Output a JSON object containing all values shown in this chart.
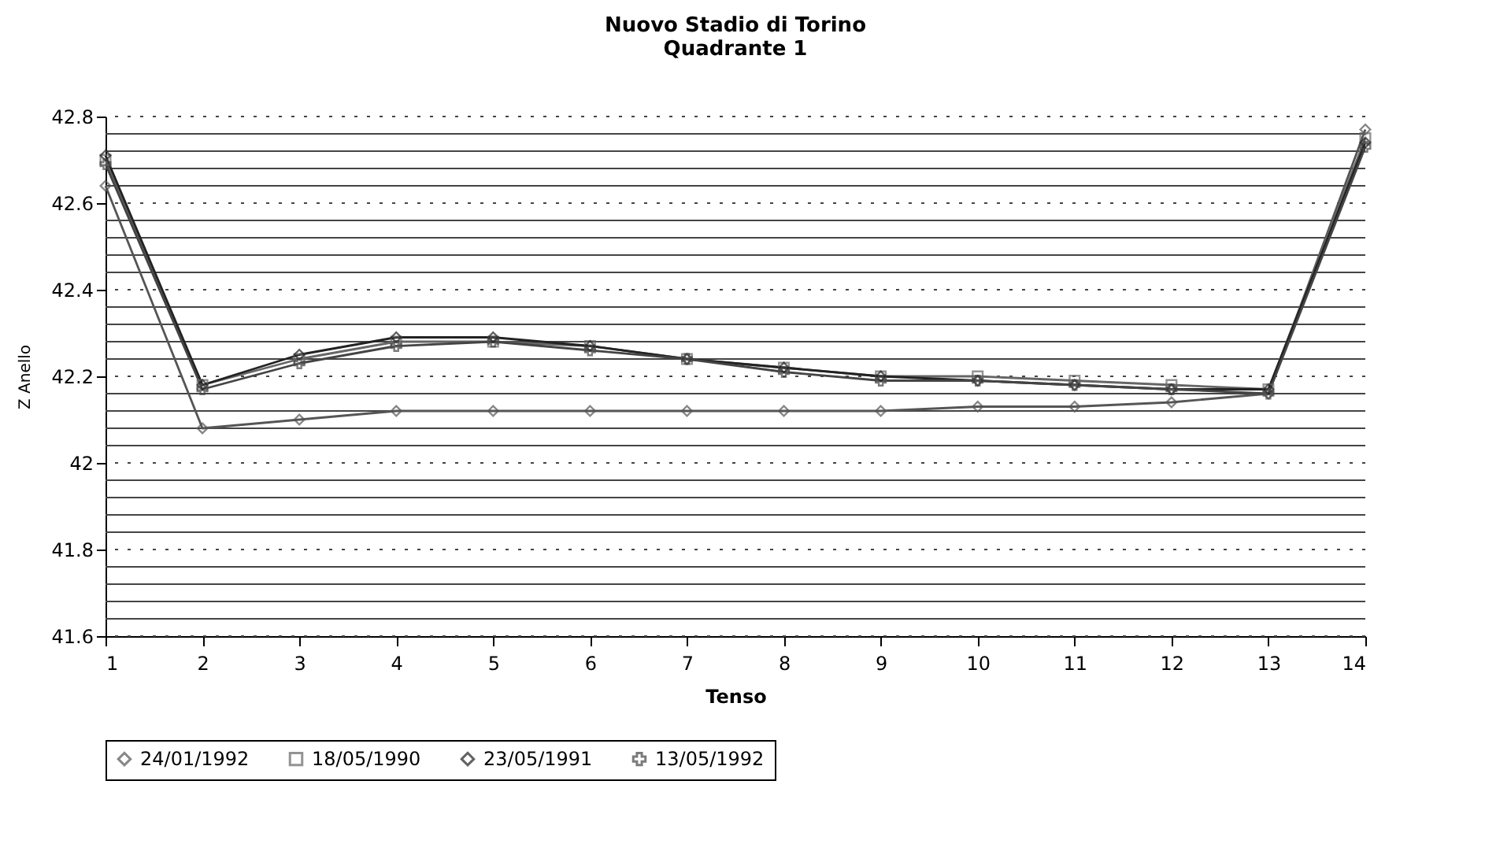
{
  "chart_data": {
    "type": "line",
    "title": "Nuovo Stadio di Torino",
    "subtitle": "Quadrante 1",
    "xlabel": "Tenso",
    "ylabel": "Z Anello",
    "x": [
      1,
      2,
      3,
      4,
      5,
      6,
      7,
      8,
      9,
      10,
      11,
      12,
      13,
      14
    ],
    "xlim": [
      1,
      14
    ],
    "xticks": [
      1,
      2,
      3,
      4,
      5,
      6,
      7,
      8,
      9,
      10,
      11,
      12,
      13,
      14
    ],
    "ylim": [
      41.6,
      42.8
    ],
    "yticks": [
      41.6,
      {
        "value": 41.64,
        "label": null
      },
      {
        "value": 41.68,
        "label": null
      },
      {
        "value": 41.72,
        "label": null
      },
      {
        "value": 41.76,
        "label": null
      },
      41.8,
      {
        "value": 41.84,
        "label": null
      },
      {
        "value": 41.88,
        "label": null
      },
      {
        "value": 41.92,
        "label": null
      },
      {
        "value": 41.96,
        "label": null
      },
      42,
      {
        "value": 42.04,
        "label": null
      },
      {
        "value": 42.08,
        "label": null
      },
      {
        "value": 42.12,
        "label": null
      },
      {
        "value": 42.16,
        "label": null
      },
      42.2,
      {
        "value": 42.24,
        "label": null
      },
      {
        "value": 42.28,
        "label": null
      },
      {
        "value": 42.32,
        "label": null
      },
      {
        "value": 42.36,
        "label": null
      },
      42.4,
      {
        "value": 42.44,
        "label": null
      },
      {
        "value": 42.48,
        "label": null
      },
      {
        "value": 42.52,
        "label": null
      },
      {
        "value": 42.56,
        "label": null
      },
      42.6,
      {
        "value": 42.64,
        "label": null
      },
      {
        "value": 42.68,
        "label": null
      },
      {
        "value": 42.72,
        "label": null
      },
      {
        "value": 42.76,
        "label": null
      },
      42.8
    ],
    "grid": "y",
    "legend": "bottom",
    "series": [
      {
        "name": "24/01/1992",
        "color": "#555555",
        "marker": "diamond",
        "values": [
          42.64,
          42.08,
          42.1,
          42.12,
          42.12,
          42.12,
          42.12,
          42.12,
          42.12,
          42.13,
          42.13,
          42.14,
          42.16,
          42.77
        ]
      },
      {
        "name": "18/05/1990",
        "color": "#666666",
        "marker": "square",
        "values": [
          42.7,
          42.18,
          42.24,
          42.28,
          42.28,
          42.27,
          42.24,
          42.22,
          42.2,
          42.2,
          42.19,
          42.18,
          42.17,
          42.75
        ]
      },
      {
        "name": "23/05/1991",
        "color": "#222222",
        "marker": "diamond",
        "values": [
          42.71,
          42.18,
          42.25,
          42.29,
          42.29,
          42.27,
          42.24,
          42.22,
          42.2,
          42.19,
          42.18,
          42.17,
          42.17,
          42.74
        ]
      },
      {
        "name": "13/05/1992",
        "color": "#444444",
        "marker": "cross",
        "values": [
          42.69,
          42.17,
          42.23,
          42.27,
          42.28,
          42.26,
          42.24,
          42.21,
          42.19,
          42.19,
          42.18,
          42.17,
          42.16,
          42.73
        ]
      }
    ]
  }
}
